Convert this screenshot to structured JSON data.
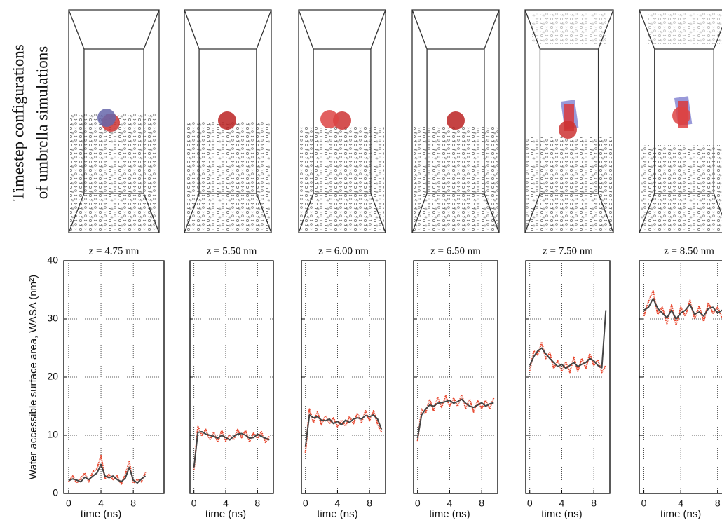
{
  "figure": {
    "snapshot_label": [
      "Timestep configurations",
      "of umbrella simulations"
    ]
  },
  "chart_data": [
    {
      "type": "line",
      "title": "z = 4.75 nm",
      "xlabel": "time (ns)",
      "ylabel": "Water accessible surface area, WASA (nm²)",
      "x": [
        0,
        0.5,
        1,
        1.5,
        2,
        2.5,
        3,
        3.5,
        4,
        4.5,
        5,
        5.5,
        6,
        6.5,
        7,
        7.5,
        8,
        8.5,
        9,
        9.5
      ],
      "series": [
        {
          "color": "#e8452c",
          "style": "dotted",
          "values": [
            2.0,
            3.0,
            1.8,
            2.6,
            3.5,
            2.0,
            3.8,
            4.2,
            6.5,
            2.5,
            3.3,
            2.4,
            3.0,
            1.6,
            3.2,
            5.5,
            1.8,
            2.4,
            2.0,
            3.6
          ]
        },
        {
          "color": "#444444",
          "style": "solid",
          "values": [
            2.2,
            2.5,
            2.3,
            2.0,
            2.8,
            2.4,
            3.0,
            3.5,
            5.0,
            3.0,
            2.7,
            3.0,
            2.4,
            2.0,
            2.6,
            4.5,
            2.3,
            1.8,
            2.5,
            3.0
          ]
        }
      ],
      "xlim": [
        -0.6,
        11.8
      ],
      "ylim": [
        0,
        40
      ],
      "xticks": [
        0,
        4,
        8
      ],
      "yticks": [
        0,
        10,
        20,
        30,
        40
      ],
      "show_ytick_labels": true,
      "grid": true
    },
    {
      "type": "line",
      "title": "z = 5.50 nm",
      "xlabel": "time (ns)",
      "x": [
        0,
        0.5,
        1,
        1.5,
        2,
        2.5,
        3,
        3.5,
        4,
        4.5,
        5,
        5.5,
        6,
        6.5,
        7,
        7.5,
        8,
        8.5,
        9,
        9.5
      ],
      "series": [
        {
          "color": "#e8452c",
          "style": "dotted",
          "values": [
            4.0,
            11.5,
            10.0,
            11.0,
            9.2,
            10.5,
            8.8,
            10.8,
            9.0,
            10.0,
            9.2,
            11.0,
            9.6,
            10.8,
            8.9,
            10.4,
            9.5,
            10.6,
            8.8,
            9.8
          ]
        },
        {
          "color": "#444444",
          "style": "solid",
          "values": [
            4.5,
            10.5,
            10.6,
            10.2,
            10.0,
            9.8,
            9.5,
            10.0,
            9.6,
            9.2,
            9.8,
            10.2,
            10.3,
            10.0,
            9.5,
            9.6,
            10.2,
            9.8,
            9.5,
            9.2
          ]
        }
      ],
      "xlim": [
        -0.5,
        10
      ],
      "ylim": [
        0,
        40
      ],
      "xticks": [
        0,
        4,
        8
      ],
      "yticks": [
        0,
        10,
        20,
        30,
        40
      ],
      "show_ytick_labels": false,
      "grid": true
    },
    {
      "type": "line",
      "title": "z = 6.00 nm",
      "xlabel": "time (ns)",
      "x": [
        0,
        0.5,
        1,
        1.5,
        2,
        2.5,
        3,
        3.5,
        4,
        4.5,
        5,
        5.5,
        6,
        6.5,
        7,
        7.5,
        8,
        8.5,
        9,
        9.5
      ],
      "series": [
        {
          "color": "#e8452c",
          "style": "dotted",
          "values": [
            7.0,
            14.5,
            12.2,
            14.0,
            11.8,
            13.4,
            12.0,
            13.0,
            11.5,
            12.6,
            11.6,
            13.2,
            12.0,
            13.8,
            12.2,
            14.2,
            12.5,
            14.2,
            12.0,
            10.5
          ]
        },
        {
          "color": "#444444",
          "style": "solid",
          "values": [
            8.0,
            13.5,
            13.0,
            13.2,
            12.6,
            12.5,
            12.8,
            12.0,
            12.4,
            11.8,
            12.6,
            12.2,
            12.8,
            13.0,
            12.8,
            13.4,
            13.2,
            13.5,
            12.8,
            11.0
          ]
        }
      ],
      "xlim": [
        -0.5,
        10
      ],
      "ylim": [
        0,
        40
      ],
      "xticks": [
        0,
        4,
        8
      ],
      "yticks": [
        0,
        10,
        20,
        30,
        40
      ],
      "show_ytick_labels": false,
      "grid": true
    },
    {
      "type": "line",
      "title": "z = 6.50 nm",
      "xlabel": "time (ns)",
      "x": [
        0,
        0.5,
        1,
        1.5,
        2,
        2.5,
        3,
        3.5,
        4,
        4.5,
        5,
        5.5,
        6,
        6.5,
        7,
        7.5,
        8,
        8.5,
        9,
        9.5
      ],
      "series": [
        {
          "color": "#e8452c",
          "style": "dotted",
          "values": [
            9.0,
            14.5,
            13.8,
            16.2,
            14.2,
            16.5,
            14.8,
            16.8,
            15.0,
            16.4,
            15.0,
            17.0,
            14.6,
            16.2,
            14.0,
            16.0,
            14.6,
            16.0,
            14.6,
            16.4
          ]
        },
        {
          "color": "#444444",
          "style": "solid",
          "values": [
            9.5,
            13.5,
            14.5,
            15.2,
            15.0,
            15.5,
            15.6,
            15.8,
            16.0,
            15.5,
            15.8,
            16.2,
            15.5,
            15.0,
            14.8,
            15.2,
            15.6,
            15.0,
            15.4,
            15.6
          ]
        }
      ],
      "xlim": [
        -0.5,
        10
      ],
      "ylim": [
        0,
        40
      ],
      "xticks": [
        0,
        4,
        8
      ],
      "yticks": [
        0,
        10,
        20,
        30,
        40
      ],
      "show_ytick_labels": false,
      "grid": true
    },
    {
      "type": "line",
      "title": "z = 7.50 nm",
      "xlabel": "time (ns)",
      "x": [
        0,
        0.5,
        1,
        1.5,
        2,
        2.5,
        3,
        3.5,
        4,
        4.5,
        5,
        5.5,
        6,
        6.5,
        7,
        7.5,
        8,
        8.5,
        9,
        9.5
      ],
      "series": [
        {
          "color": "#e8452c",
          "style": "dotted",
          "values": [
            21.0,
            24.5,
            23.8,
            26.0,
            23.2,
            24.2,
            21.5,
            22.8,
            21.0,
            22.6,
            20.8,
            23.4,
            21.0,
            23.2,
            21.5,
            24.0,
            22.0,
            23.0,
            20.8,
            22.0
          ]
        },
        {
          "color": "#444444",
          "style": "solid",
          "values": [
            22.0,
            23.5,
            24.5,
            25.0,
            24.0,
            23.2,
            22.5,
            21.8,
            22.2,
            21.5,
            22.0,
            22.5,
            21.8,
            22.2,
            22.5,
            23.2,
            22.8,
            22.0,
            21.6,
            31.5
          ]
        }
      ],
      "xlim": [
        -0.5,
        10
      ],
      "ylim": [
        0,
        40
      ],
      "xticks": [
        0,
        4,
        8
      ],
      "yticks": [
        0,
        10,
        20,
        30,
        40
      ],
      "show_ytick_labels": false,
      "grid": true
    },
    {
      "type": "line",
      "title": "z = 8.50 nm",
      "xlabel": "time (ns)",
      "x": [
        0,
        0.5,
        1,
        1.5,
        2,
        2.5,
        3,
        3.5,
        4,
        4.5,
        5,
        5.5,
        6,
        6.5,
        7,
        7.5,
        8,
        8.5,
        9,
        9.5
      ],
      "series": [
        {
          "color": "#e8452c",
          "style": "dotted",
          "values": [
            30.5,
            33.0,
            34.8,
            30.8,
            32.0,
            29.2,
            32.4,
            29.0,
            32.0,
            30.5,
            33.2,
            30.0,
            32.2,
            29.6,
            32.8,
            31.0,
            32.0,
            30.2,
            31.8,
            30.2
          ]
        },
        {
          "color": "#444444",
          "style": "solid",
          "values": [
            31.5,
            32.0,
            33.5,
            31.8,
            31.0,
            30.2,
            31.5,
            30.0,
            31.0,
            31.5,
            32.5,
            30.8,
            31.2,
            30.5,
            31.8,
            32.0,
            31.0,
            31.5,
            30.8,
            31.2
          ]
        }
      ],
      "xlim": [
        -0.5,
        10
      ],
      "ylim": [
        0,
        40
      ],
      "xticks": [
        0,
        4,
        8
      ],
      "yticks": [
        0,
        10,
        20,
        30,
        40
      ],
      "show_ytick_labels": false,
      "grid": true
    }
  ]
}
